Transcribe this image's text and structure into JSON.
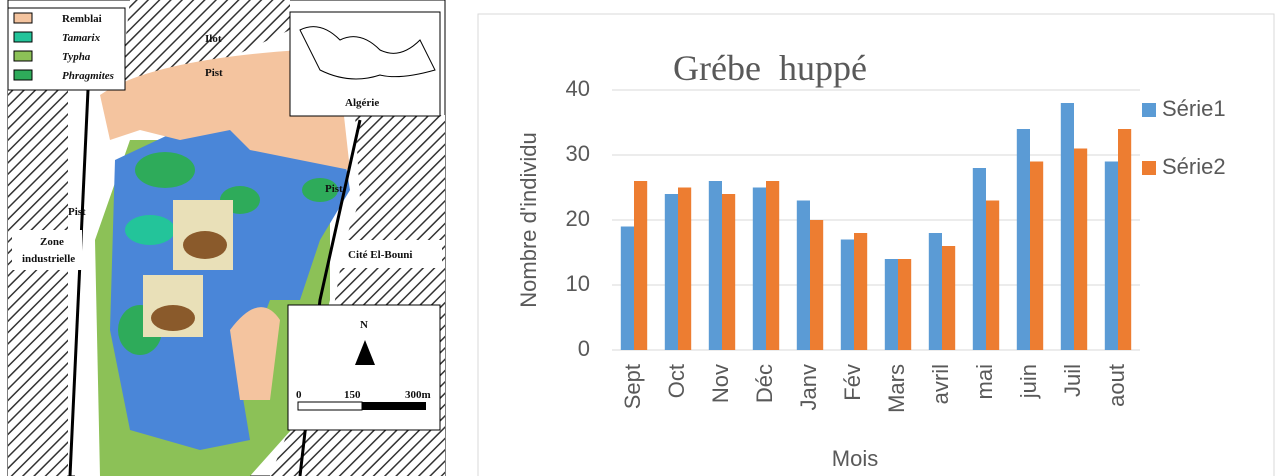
{
  "map": {
    "legend": [
      "Remblai",
      "Tamarix",
      "Typha",
      "Phragmites"
    ],
    "places": [
      "Ilot",
      "Pist",
      "Pist",
      "Pist",
      "Zone",
      "industrielle",
      "Cité El-Bouni",
      "Algérie"
    ],
    "north": "N",
    "scale": [
      "0",
      "150",
      "300m"
    ]
  },
  "chart_data": {
    "type": "bar",
    "title": "Grébe  huppé",
    "x_label": "Mois",
    "y_label": "Nombre d'individu",
    "categories": [
      "Sept",
      "Oct",
      "Nov",
      "Déc",
      "Janv",
      "Fév",
      "Mars",
      "avril",
      "mai",
      "juin",
      "Juil",
      "aout"
    ],
    "series": [
      {
        "name": "Série1",
        "color": "#5b9bd5",
        "values": [
          19,
          24,
          26,
          25,
          23,
          17,
          14,
          18,
          28,
          34,
          38,
          29
        ]
      },
      {
        "name": "Série2",
        "color": "#ed7d31",
        "values": [
          26,
          25,
          24,
          26,
          20,
          18,
          14,
          16,
          23,
          29,
          31,
          34
        ]
      }
    ],
    "ylim": [
      0,
      40
    ],
    "yticks": [
      0,
      10,
      20,
      30,
      40
    ],
    "grid": true,
    "legend": "right"
  }
}
